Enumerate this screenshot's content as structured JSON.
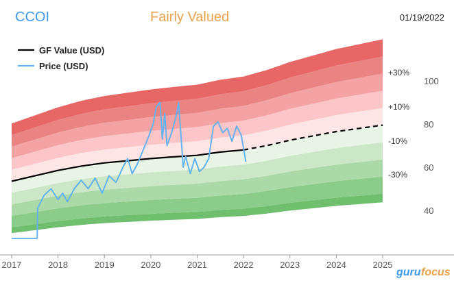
{
  "header": {
    "ticker": "CCOI",
    "valuation": "Fairly Valued",
    "date": "01/19/2022"
  },
  "brand": {
    "name_left": "guru",
    "name_right": "focus"
  },
  "colors": {
    "price": "#64b3ee",
    "gf_value": "#000000",
    "ticker": "#3d9be9",
    "valuation": "#e8a24a",
    "brand_left": "#3d9be9",
    "brand_right": "#e8a24a"
  },
  "chart_data": {
    "type": "line",
    "xlim": [
      2017,
      2025
    ],
    "ylim": [
      25,
      118
    ],
    "y_ticks": [
      40,
      60,
      80,
      100
    ],
    "x_ticks": [
      "2017",
      "2018",
      "2019",
      "2020",
      "2021",
      "2022",
      "2023",
      "2024",
      "2025"
    ],
    "legend": [
      "GF Value (USD)",
      "Price (USD)"
    ],
    "band_labels": [
      "+30%",
      "+10%",
      "-10%",
      "-30%"
    ],
    "gf_value": {
      "name": "GF Value (USD)",
      "x": [
        2017.0,
        2017.5,
        2018.0,
        2018.5,
        2019.0,
        2019.5,
        2020.0,
        2020.5,
        2021.0,
        2021.5,
        2022.0,
        2022.5,
        2023.0,
        2023.5,
        2024.0,
        2024.5,
        2025.0
      ],
      "y": [
        53.5,
        56.0,
        58.5,
        60.5,
        62.0,
        63.0,
        64.0,
        64.8,
        65.5,
        67.0,
        68.0,
        70.0,
        72.5,
        74.5,
        76.5,
        78.0,
        79.5
      ],
      "projected_from": 2022.0
    },
    "price": {
      "name": "Price (USD)",
      "x": [
        2017.0,
        2017.55,
        2017.56,
        2017.7,
        2017.85,
        2018.0,
        2018.1,
        2018.2,
        2018.35,
        2018.5,
        2018.65,
        2018.8,
        2018.95,
        2019.1,
        2019.25,
        2019.4,
        2019.5,
        2019.6,
        2019.7,
        2019.8,
        2019.95,
        2020.05,
        2020.12,
        2020.2,
        2020.25,
        2020.3,
        2020.35,
        2020.45,
        2020.55,
        2020.6,
        2020.65,
        2020.7,
        2020.75,
        2020.85,
        2020.95,
        2021.05,
        2021.15,
        2021.25,
        2021.35,
        2021.45,
        2021.55,
        2021.65,
        2021.75,
        2021.85,
        2021.95,
        2022.05
      ],
      "y": [
        27.0,
        27.0,
        41.0,
        47.0,
        50.0,
        45.0,
        48.0,
        44.0,
        50.0,
        54.0,
        50.0,
        55.0,
        48.0,
        56.0,
        53.0,
        60.0,
        64.0,
        57.0,
        61.0,
        66.0,
        74.0,
        80.0,
        88.0,
        90.0,
        73.0,
        85.0,
        70.0,
        76.0,
        84.0,
        90.0,
        75.0,
        60.0,
        65.0,
        57.0,
        64.0,
        58.0,
        60.0,
        64.0,
        79.0,
        81.0,
        76.0,
        78.0,
        72.0,
        79.0,
        75.0,
        62.5
      ]
    },
    "bands": {
      "multipliers": [
        0.55,
        0.6,
        0.7,
        0.8,
        0.9,
        1.0,
        1.1,
        1.2,
        1.3,
        1.4,
        1.5
      ],
      "colors": [
        "#6fbf6f",
        "#8ccc8a",
        "#acd9a8",
        "#cbe7c7",
        "#e8f4e6",
        "#fde4e5",
        "#fcc6c9",
        "#f4a3a4",
        "#ea8483",
        "#e76767"
      ]
    }
  }
}
